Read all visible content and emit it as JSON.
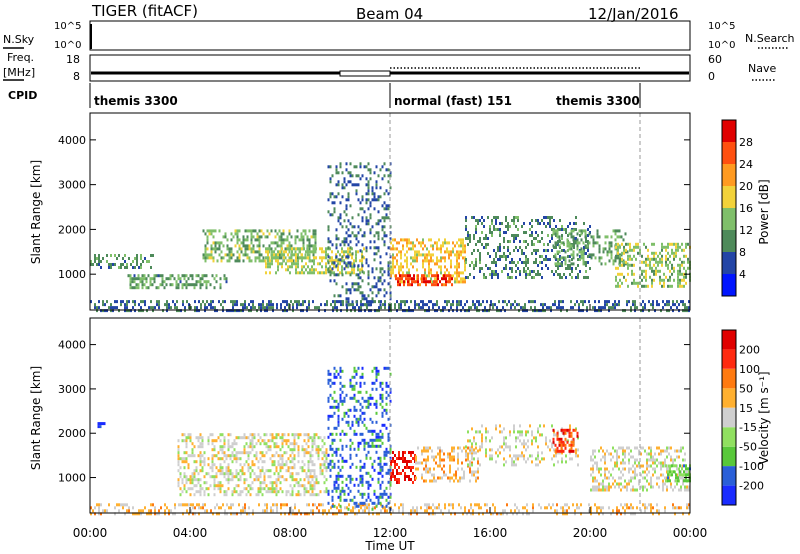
{
  "header": {
    "radar": "TIGER (fitACF)",
    "beam": "Beam 04",
    "date": "12/Jan/2016"
  },
  "strip_labels": {
    "nsky": "N.Sky",
    "nsky_ticks": [
      "10^5",
      "10^0"
    ],
    "nsearch": "N.Search",
    "freq": "Freq.",
    "freq_unit": "[MHz]",
    "freq_ticks": [
      "18",
      "8"
    ],
    "nave": "Nave",
    "nave_ticks": [
      "60",
      "0"
    ],
    "cpid": "CPID"
  },
  "cpid_segments": [
    {
      "label": "themis 3300",
      "start_h": 0,
      "end_h": 12
    },
    {
      "label": "normal (fast) 151",
      "start_h": 12,
      "end_h": 22
    },
    {
      "label": "themis 3300",
      "start_h": 22,
      "end_h": 24
    }
  ],
  "axes": {
    "xlabel": "Time UT",
    "xticks": [
      "00:00",
      "04:00",
      "08:00",
      "12:00",
      "16:00",
      "20:00",
      "00:00"
    ],
    "ylabel": "Slant Range [km]",
    "yticks": [
      1000,
      2000,
      3000,
      4000
    ],
    "ylim": [
      200,
      4600
    ]
  },
  "colorbars": {
    "power": {
      "label": "Power [dB]",
      "ticks": [
        "4",
        "8",
        "12",
        "16",
        "20",
        "24",
        "28"
      ],
      "colors": [
        "#0015ff",
        "#2345a6",
        "#4e8a5a",
        "#7fbf6a",
        "#f2d23a",
        "#ff9a20",
        "#ff5010",
        "#e00000"
      ]
    },
    "velocity": {
      "label": "Velocity [m s⁻¹]",
      "ticks": [
        "200",
        "100",
        "50",
        "15",
        "-15",
        "-50",
        "-100",
        "-200"
      ],
      "colors": [
        "#1a2cff",
        "#2a5fd8",
        "#58c83a",
        "#90e060",
        "#cfcfcf",
        "#ffb030",
        "#ff7a10",
        "#ff2a10",
        "#e00000"
      ]
    }
  },
  "chart_data": [
    {
      "type": "heatmap",
      "title": "",
      "variable": "Power",
      "unit": "dB",
      "xlabel": "Time UT",
      "ylabel": "Slant Range [km]",
      "xlim_hours": [
        0,
        24
      ],
      "ylim": [
        200,
        4600
      ],
      "clim": [
        0,
        30
      ],
      "regions": [
        {
          "t": [
            0.0,
            24.0
          ],
          "r": [
            200,
            420
          ],
          "value": 6,
          "density": 0.45
        },
        {
          "t": [
            0.0,
            2.5
          ],
          "r": [
            1150,
            1450
          ],
          "value": 9,
          "density": 0.4
        },
        {
          "t": [
            1.5,
            5.5
          ],
          "r": [
            700,
            1000
          ],
          "value": 10,
          "density": 0.45
        },
        {
          "t": [
            4.5,
            9.0
          ],
          "r": [
            1300,
            2000
          ],
          "value": 12,
          "density": 0.45
        },
        {
          "t": [
            7.0,
            11.0
          ],
          "r": [
            1000,
            1600
          ],
          "value": 15,
          "density": 0.5
        },
        {
          "t": [
            9.5,
            12.0
          ],
          "r": [
            300,
            3500
          ],
          "value": 6,
          "density": 0.25
        },
        {
          "t": [
            12.0,
            15.0
          ],
          "r": [
            850,
            1800
          ],
          "value": 18,
          "density": 0.45
        },
        {
          "t": [
            12.2,
            14.5
          ],
          "r": [
            780,
            1000
          ],
          "value": 27,
          "density": 0.6
        },
        {
          "t": [
            15.0,
            20.0
          ],
          "r": [
            900,
            2300
          ],
          "value": 8,
          "density": 0.3
        },
        {
          "t": [
            18.5,
            21.5
          ],
          "r": [
            1200,
            2000
          ],
          "value": 11,
          "density": 0.35
        },
        {
          "t": [
            21.0,
            24.0
          ],
          "r": [
            700,
            1700
          ],
          "value": 13,
          "density": 0.45
        }
      ]
    },
    {
      "type": "heatmap",
      "title": "",
      "variable": "Velocity",
      "unit": "m s^-1",
      "xlabel": "Time UT",
      "ylabel": "Slant Range [km]",
      "xlim_hours": [
        0,
        24
      ],
      "ylim": [
        200,
        4600
      ],
      "clim": [
        -200,
        200
      ],
      "regions": [
        {
          "t": [
            0.0,
            24.0
          ],
          "r": [
            200,
            420
          ],
          "value": 40,
          "density": 0.35
        },
        {
          "t": [
            0.3,
            0.6
          ],
          "r": [
            2150,
            2250
          ],
          "value": -200,
          "density": 0.7
        },
        {
          "t": [
            3.5,
            9.5
          ],
          "r": [
            600,
            2000
          ],
          "value": 0,
          "density": 0.4
        },
        {
          "t": [
            9.5,
            12.0
          ],
          "r": [
            300,
            3500
          ],
          "value": -150,
          "density": 0.3
        },
        {
          "t": [
            12.0,
            13.0
          ],
          "r": [
            900,
            1600
          ],
          "value": 180,
          "density": 0.55
        },
        {
          "t": [
            13.0,
            15.5
          ],
          "r": [
            900,
            1700
          ],
          "value": 40,
          "density": 0.4
        },
        {
          "t": [
            15.0,
            19.5
          ],
          "r": [
            1300,
            2200
          ],
          "value": 0,
          "density": 0.25
        },
        {
          "t": [
            18.5,
            19.5
          ],
          "r": [
            1600,
            2100
          ],
          "value": 150,
          "density": 0.45
        },
        {
          "t": [
            20.0,
            24.0
          ],
          "r": [
            700,
            1700
          ],
          "value": 0,
          "density": 0.4
        },
        {
          "t": [
            23.0,
            24.0
          ],
          "r": [
            900,
            1300
          ],
          "value": -80,
          "density": 0.5
        }
      ]
    }
  ]
}
